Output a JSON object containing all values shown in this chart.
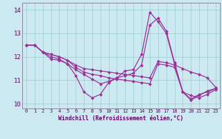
{
  "xlabel": "Windchill (Refroidissement éolien,°C)",
  "background_color": "#cce8f0",
  "grid_color": "#99cccc",
  "line_color": "#993399",
  "xlim": [
    -0.5,
    23.5
  ],
  "ylim": [
    9.8,
    14.3
  ],
  "yticks": [
    10,
    11,
    12,
    13,
    14
  ],
  "xticks": [
    0,
    1,
    2,
    3,
    4,
    5,
    6,
    7,
    8,
    9,
    10,
    11,
    12,
    13,
    14,
    15,
    16,
    17,
    18,
    19,
    20,
    21,
    22,
    23
  ],
  "lines": [
    [
      12.5,
      12.5,
      12.2,
      11.9,
      11.85,
      11.7,
      11.2,
      10.5,
      10.25,
      10.4,
      10.9,
      11.1,
      11.4,
      11.45,
      12.1,
      13.9,
      13.5,
      13.0,
      11.7,
      10.5,
      10.15,
      10.35,
      10.55,
      10.65
    ],
    [
      12.5,
      12.5,
      12.2,
      12.1,
      12.0,
      11.85,
      11.65,
      11.5,
      11.45,
      11.4,
      11.35,
      11.3,
      11.25,
      11.2,
      11.15,
      11.1,
      11.8,
      11.75,
      11.65,
      11.5,
      11.35,
      11.25,
      11.1,
      10.7
    ],
    [
      12.5,
      12.5,
      12.2,
      12.1,
      12.0,
      11.85,
      11.55,
      11.35,
      11.25,
      11.2,
      11.1,
      11.05,
      11.0,
      10.95,
      10.9,
      10.85,
      11.7,
      11.65,
      11.55,
      10.5,
      10.35,
      10.25,
      10.4,
      10.6
    ],
    [
      12.5,
      12.5,
      12.2,
      12.0,
      11.9,
      11.7,
      11.45,
      11.25,
      11.05,
      10.85,
      10.95,
      11.1,
      11.2,
      11.3,
      11.65,
      13.35,
      13.65,
      13.1,
      11.75,
      10.5,
      10.2,
      10.4,
      10.5,
      10.65
    ]
  ]
}
